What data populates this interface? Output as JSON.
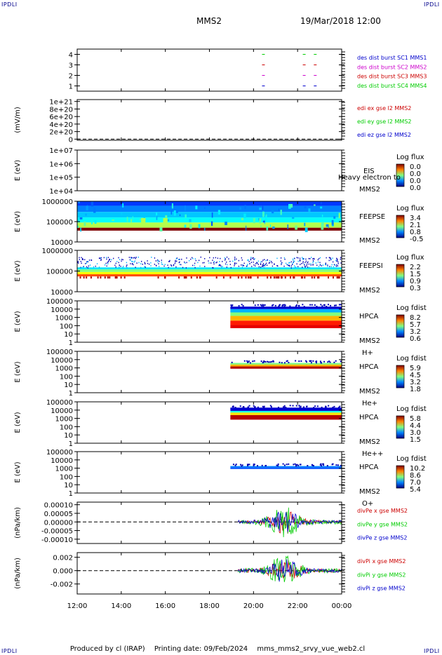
{
  "page": {
    "corner_label": "IPDLI",
    "title": "MMS2",
    "date": "19/Mar/2018 12:00",
    "footer": {
      "producer": "Produced by cl (IRAP)",
      "printing": "Printing date: 09/Feb/2024",
      "file": "mms_mms2_srvy_vue_web2.cl"
    }
  },
  "chart_data": [
    {
      "type": "line",
      "panel": "des-dist-burst",
      "ylabel": "",
      "yticks": [
        "1",
        "2",
        "3",
        "4"
      ],
      "ylim": [
        0.5,
        4.5
      ],
      "legend": [
        {
          "label": "des dist burst SC1 MMS1",
          "color": "#0000cc"
        },
        {
          "label": "des dist burst SC2 MMS2",
          "color": "#cc00cc"
        },
        {
          "label": "des dist burst SC3 MMS3",
          "color": "#cc0000"
        },
        {
          "label": "des dist burst SC4 MMS4",
          "color": "#00cc00"
        }
      ],
      "marks": [
        {
          "x": 20.45,
          "y": 1,
          "color": "#0000cc"
        },
        {
          "x": 22.3,
          "y": 1,
          "color": "#0000cc"
        },
        {
          "x": 22.8,
          "y": 1,
          "color": "#0000cc"
        },
        {
          "x": 20.45,
          "y": 2,
          "color": "#cc00cc"
        },
        {
          "x": 22.3,
          "y": 2,
          "color": "#cc00cc"
        },
        {
          "x": 22.8,
          "y": 2,
          "color": "#cc00cc"
        },
        {
          "x": 20.45,
          "y": 3,
          "color": "#cc0000"
        },
        {
          "x": 22.3,
          "y": 3,
          "color": "#cc0000"
        },
        {
          "x": 22.8,
          "y": 3,
          "color": "#cc0000"
        },
        {
          "x": 20.45,
          "y": 4,
          "color": "#00cc00"
        },
        {
          "x": 22.3,
          "y": 4,
          "color": "#00cc00"
        },
        {
          "x": 22.8,
          "y": 4,
          "color": "#00cc00"
        }
      ]
    },
    {
      "type": "line",
      "panel": "edi-efield",
      "ylabel": "(mV/m)",
      "yticks": [
        "0",
        "2e+20",
        "4e+20",
        "6e+20",
        "8e+20",
        "1e+21"
      ],
      "ylim": [
        -3e+19,
        1.05e+21
      ],
      "zero_line": true,
      "legend": [
        {
          "label": "edi ex gse l2 MMS2",
          "color": "#cc0000"
        },
        {
          "label": "edi ey gse l2 MMS2",
          "color": "#00cc00"
        },
        {
          "label": "edi ez gse l2 MMS2",
          "color": "#0000cc"
        }
      ]
    },
    {
      "type": "heatmap",
      "panel": "eis",
      "ylabel": "E (eV)",
      "yticks": [
        "1e+04",
        "1e+05",
        "1e+06",
        "1e+07"
      ],
      "ylog": true,
      "ylim": [
        10000.0,
        10000000.0
      ],
      "colorbar": {
        "title": "Log flux",
        "ticks": [
          "0.0",
          "0.0",
          "0.0",
          "0.0"
        ]
      },
      "labels": [
        "EIS",
        "MMS2"
      ],
      "overlay_text": "Heavy electron to"
    },
    {
      "type": "heatmap",
      "panel": "feepse",
      "ylabel": "E (eV)",
      "yticks": [
        "10000",
        "100000",
        "1000000"
      ],
      "ylog": true,
      "ylim": [
        10000.0,
        1000000.0
      ],
      "colorbar": {
        "title": "Log flux",
        "ticks": [
          "3.4",
          "2.1",
          "0.8",
          "-0.5"
        ]
      },
      "labels": [
        "FEEPSE",
        "MMS2"
      ],
      "coverage": [
        12,
        24
      ]
    },
    {
      "type": "heatmap",
      "panel": "feepsi",
      "ylabel": "E (eV)",
      "yticks": [
        "10000",
        "100000",
        "1000000"
      ],
      "ylog": true,
      "ylim": [
        10000.0,
        1000000.0
      ],
      "colorbar": {
        "title": "Log flux",
        "ticks": [
          "2.2",
          "1.5",
          "0.9",
          "0.3"
        ]
      },
      "labels": [
        "FEEPSI",
        "MMS2"
      ],
      "coverage": [
        12,
        24
      ]
    },
    {
      "type": "heatmap",
      "panel": "hpca-h",
      "ylabel": "E (eV)",
      "yticks": [
        "1",
        "10",
        "100",
        "1000",
        "10000",
        "100000"
      ],
      "ylog": true,
      "ylim": [
        1,
        100000.0
      ],
      "colorbar": {
        "title": "Log fdist",
        "ticks": [
          "8.2",
          "5.7",
          "3.2",
          "0.6"
        ]
      },
      "labels": [
        "HPCA",
        "MMS2",
        "H+"
      ],
      "coverage": [
        18.95,
        24
      ]
    },
    {
      "type": "heatmap",
      "panel": "hpca-he",
      "ylabel": "E (eV)",
      "yticks": [
        "1",
        "10",
        "100",
        "1000",
        "10000",
        "100000"
      ],
      "ylog": true,
      "ylim": [
        1,
        100000.0
      ],
      "colorbar": {
        "title": "Log fdist",
        "ticks": [
          "5.9",
          "4.5",
          "3.2",
          "1.8"
        ]
      },
      "labels": [
        "HPCA",
        "MMS2",
        "He+"
      ],
      "coverage": [
        18.95,
        24
      ]
    },
    {
      "type": "heatmap",
      "panel": "hpca-he2",
      "ylabel": "E (eV)",
      "yticks": [
        "1",
        "10",
        "100",
        "1000",
        "10000",
        "100000"
      ],
      "ylog": true,
      "ylim": [
        1,
        100000.0
      ],
      "colorbar": {
        "title": "Log fdist",
        "ticks": [
          "5.8",
          "4.4",
          "3.0",
          "1.5"
        ]
      },
      "labels": [
        "HPCA",
        "MMS2",
        "He++"
      ],
      "coverage": [
        18.95,
        24
      ]
    },
    {
      "type": "heatmap",
      "panel": "hpca-o",
      "ylabel": "E (eV)",
      "yticks": [
        "1",
        "10",
        "100",
        "1000",
        "10000",
        "100000"
      ],
      "ylog": true,
      "ylim": [
        1,
        100000.0
      ],
      "colorbar": {
        "title": "Log fdist",
        "ticks": [
          "10.2",
          "8.6",
          "7.0",
          "5.4"
        ]
      },
      "labels": [
        "HPCA",
        "MMS2",
        "O+"
      ],
      "coverage": [
        18.95,
        24
      ]
    },
    {
      "type": "line",
      "panel": "divpe",
      "ylabel": "(nPa/km)",
      "yticks": [
        "-0.00010",
        "-0.00005",
        "0.00000",
        "0.00005",
        "0.00010"
      ],
      "ylim": [
        -0.000125,
        0.000115
      ],
      "zero_line": true,
      "legend": [
        {
          "label": "divPe x gse MMS2",
          "color": "#cc0000"
        },
        {
          "label": "divPe y gse MMS2",
          "color": "#00cc00"
        },
        {
          "label": "divPe z gse MMS2",
          "color": "#0000cc"
        }
      ],
      "coverage": [
        19.3,
        24
      ]
    },
    {
      "type": "line",
      "panel": "divpi",
      "ylabel": "(nPa/km)",
      "yticks": [
        "-0.002",
        "0.000",
        "0.002"
      ],
      "ylim": [
        -0.0035,
        0.0027
      ],
      "zero_line": true,
      "legend": [
        {
          "label": "divPi x gse MMS2",
          "color": "#cc0000"
        },
        {
          "label": "divPi y gse MMS2",
          "color": "#00cc00"
        },
        {
          "label": "divPi z gse MMS2",
          "color": "#0000cc"
        }
      ],
      "coverage": [
        19.3,
        24
      ]
    }
  ],
  "x_axis": {
    "ticks": [
      "12:00",
      "14:00",
      "16:00",
      "18:00",
      "20:00",
      "22:00",
      "00:00"
    ],
    "xlim": [
      12,
      24
    ]
  }
}
